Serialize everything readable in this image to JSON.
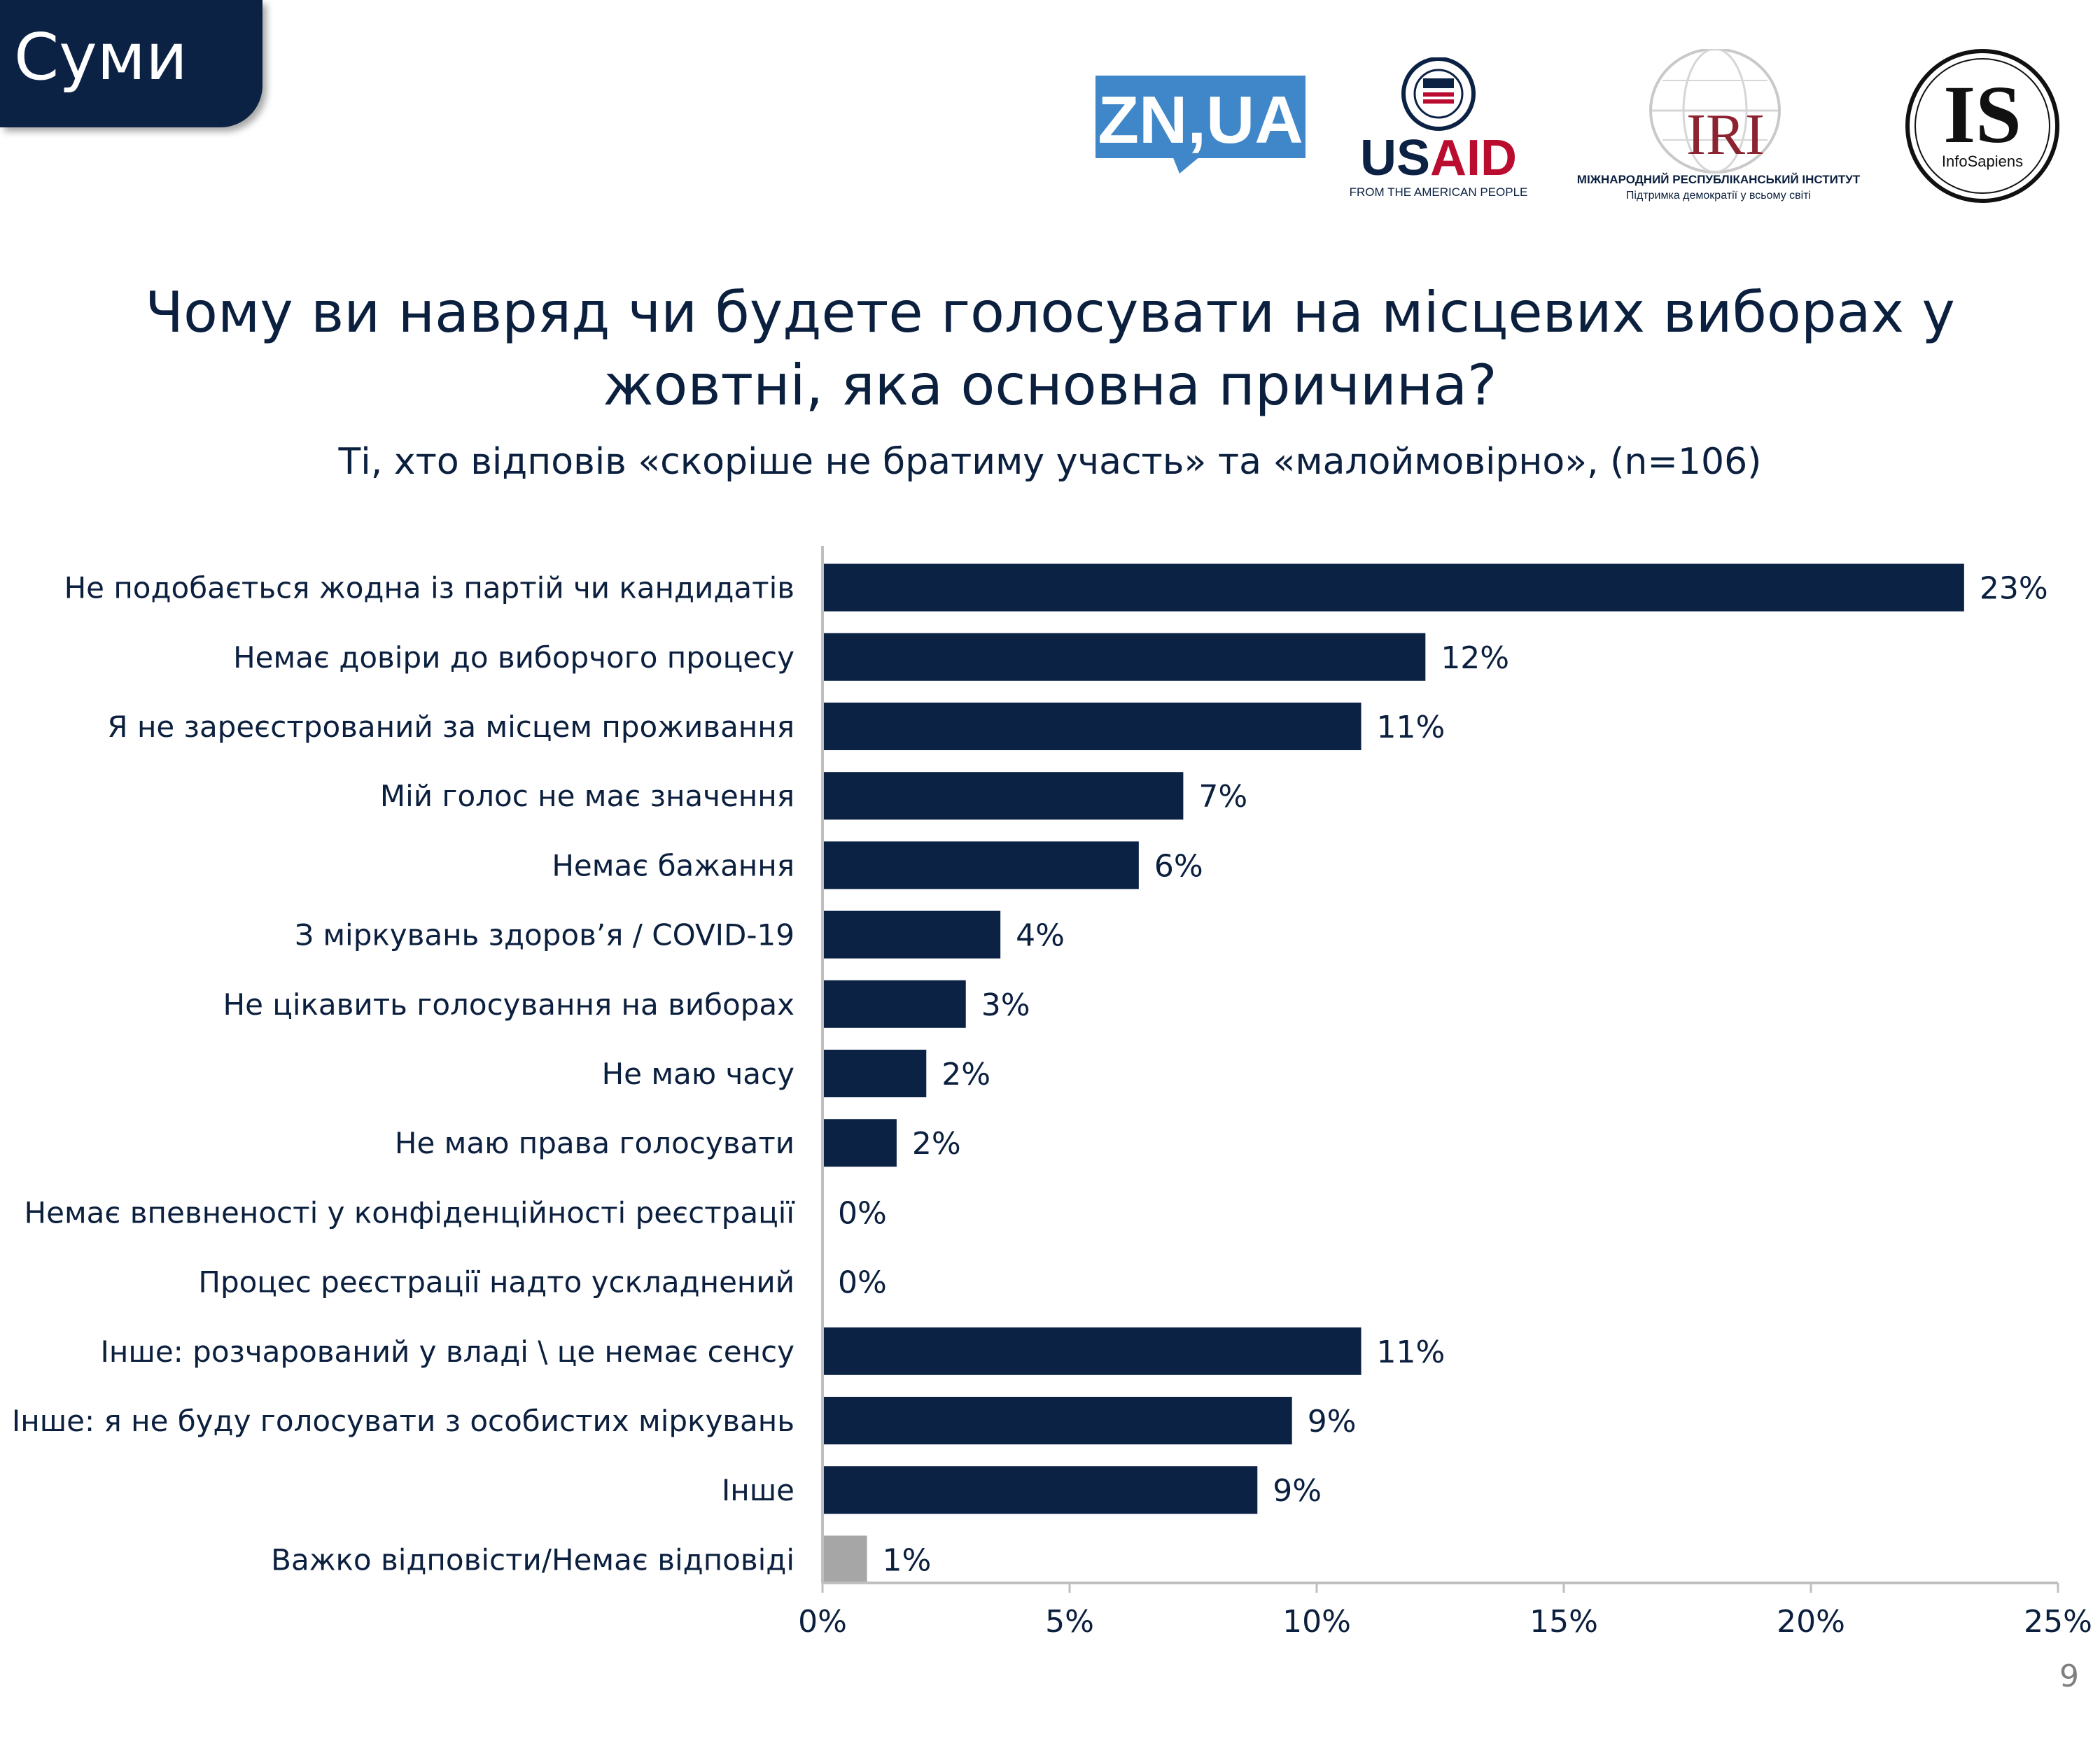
{
  "region": "Суми",
  "logos": {
    "zn": "ZN,UA",
    "usaid": "USAID",
    "usaid_tagline": "FROM THE AMERICAN PEOPLE",
    "iri": "IRI",
    "iri_name": "МІЖНАРОДНИЙ РЕСПУБЛІКАНСЬКИЙ ІНСТИТУТ",
    "iri_tagline": "Підтримка демократії у всьому світі",
    "is": "IS",
    "is_name": "InfoSapiens"
  },
  "title_line1": "Чому ви навряд чи будете голосувати на місцевих виборах у",
  "title_line2": "жовтні, яка основна причина?",
  "subtitle": "Ті, хто відповів «скоріше не братиму участь» та «малоймовірно», (n=106)",
  "page_number": "9",
  "colors": {
    "bar": "#0c2244",
    "bar_other": "#a6a6a6",
    "axis": "#bfbfbf",
    "text": "#0b1f3e"
  },
  "chart_data": {
    "type": "bar",
    "orientation": "horizontal",
    "title": "Чому ви навряд чи будете голосувати на місцевих виборах у жовтні, яка основна причина?",
    "xlim": [
      0,
      25
    ],
    "xticks": [
      "0%",
      "5%",
      "10%",
      "15%",
      "20%",
      "25%"
    ],
    "xtick_values": [
      0,
      5,
      10,
      15,
      20,
      25
    ],
    "categories": [
      "Не подобається жодна із партій чи кандидатів",
      "Немає довіри до виборчого процесу",
      "Я не зареєстрований за місцем проживання",
      "Мій голос не має значення",
      "Немає бажання",
      "З міркувань здоров’я / COVID-19",
      "Не цікавить голосування на виборах",
      "Не маю часу",
      "Не маю права голосувати",
      "Немає впевненості у конфіденційності реєстрації",
      "Процес реєстрації надто ускладнений",
      "Інше: розчарований у владі \\ це немає сенсу",
      "Інше: я не буду голосувати з особистих міркувань",
      "Інше",
      "Важко відповісти/Немає відповіді"
    ],
    "values": [
      23.1,
      12.2,
      10.9,
      7.3,
      6.4,
      3.6,
      2.9,
      2.1,
      1.5,
      0,
      0,
      10.9,
      9.5,
      8.8,
      0.9
    ],
    "labels": [
      "23%",
      "12%",
      "11%",
      "7%",
      "6%",
      "4%",
      "3%",
      "2%",
      "2%",
      "0%",
      "0%",
      "11%",
      "9%",
      "9%",
      "1%"
    ],
    "highlight_gray": [
      14
    ]
  }
}
